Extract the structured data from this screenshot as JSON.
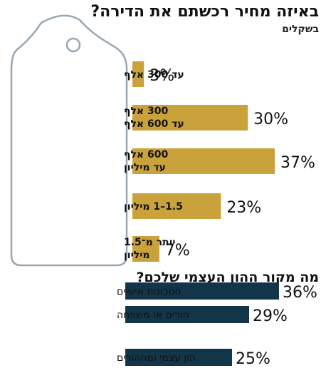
{
  "colors": {
    "gold": "#c9a23c",
    "navy": "#13354a",
    "tag_outline": "#9aa7b0",
    "text": "#111111"
  },
  "chart_data": [
    {
      "type": "bar",
      "orientation": "horizontal",
      "title": "באיזה מחיר רכשתם את הדירה?",
      "subtitle": "בשקלים",
      "categories": [
        "עד 300 אלף",
        "300 אלף עד 600 אלף",
        "600 אלף עד מיליון",
        "1.5–1 מיליון",
        "יותר מ־1.5 מיליון"
      ],
      "values": [
        3,
        30,
        37,
        23,
        7
      ],
      "value_labels": [
        "3%",
        "30%",
        "37%",
        "23%",
        "7%"
      ],
      "unit": "%",
      "color": "#c9a23c"
    },
    {
      "type": "bar",
      "orientation": "horizontal",
      "title": "מה מקור ההון העצמי שלכם?",
      "categories": [
        "חסכונות אישיים",
        "הורים או משפחה",
        "הון עצמי ומההורים"
      ],
      "values": [
        36,
        29,
        25
      ],
      "value_labels": [
        "36%",
        "29%",
        "25%"
      ],
      "unit": "%",
      "color": "#13354a"
    }
  ]
}
